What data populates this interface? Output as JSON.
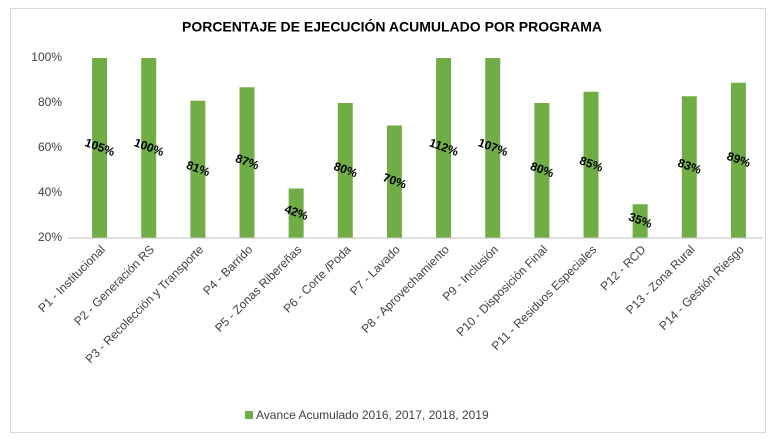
{
  "chart_data": {
    "type": "bar",
    "title": "PORCENTAJE DE EJECUCIÓN ACUMULADO  POR PROGRAMA",
    "categories": [
      "P1 - Institucional",
      "P2 - Generación RS",
      "P3 - Recolección y Transporte",
      "P4 - Barrido",
      "P5 - Zonas Ribereñas",
      "P6 - Corte /Poda",
      "P7 - Lavado",
      "P8 - Aprovechamiento",
      "P9 - Inclusión",
      "P10 - Disposición Final",
      "P11 - Residuos Especiales",
      "P12 - RCD",
      "P13 - Zona Rural",
      "P14 - Gestión Riesgo"
    ],
    "series": [
      {
        "name": "Avance Acumulado 2016, 2017, 2018, 2019",
        "color": "#70ad47",
        "values": [
          105,
          100,
          81,
          87,
          42,
          80,
          70,
          112,
          107,
          80,
          85,
          35,
          83,
          89
        ],
        "value_labels": [
          "105%",
          "100%",
          "81%",
          "87%",
          "42%",
          "80%",
          "70%",
          "112%",
          "107%",
          "80%",
          "85%",
          "35%",
          "83%",
          "89%"
        ]
      }
    ],
    "ylim": [
      20,
      100
    ],
    "yticks": [
      {
        "value": 20,
        "label": "20%"
      },
      {
        "value": 40,
        "label": "40%"
      },
      {
        "value": 60,
        "label": "60%"
      },
      {
        "value": 80,
        "label": "80%"
      },
      {
        "value": 100,
        "label": "100%"
      }
    ],
    "grid": false,
    "legend": "bottom"
  }
}
